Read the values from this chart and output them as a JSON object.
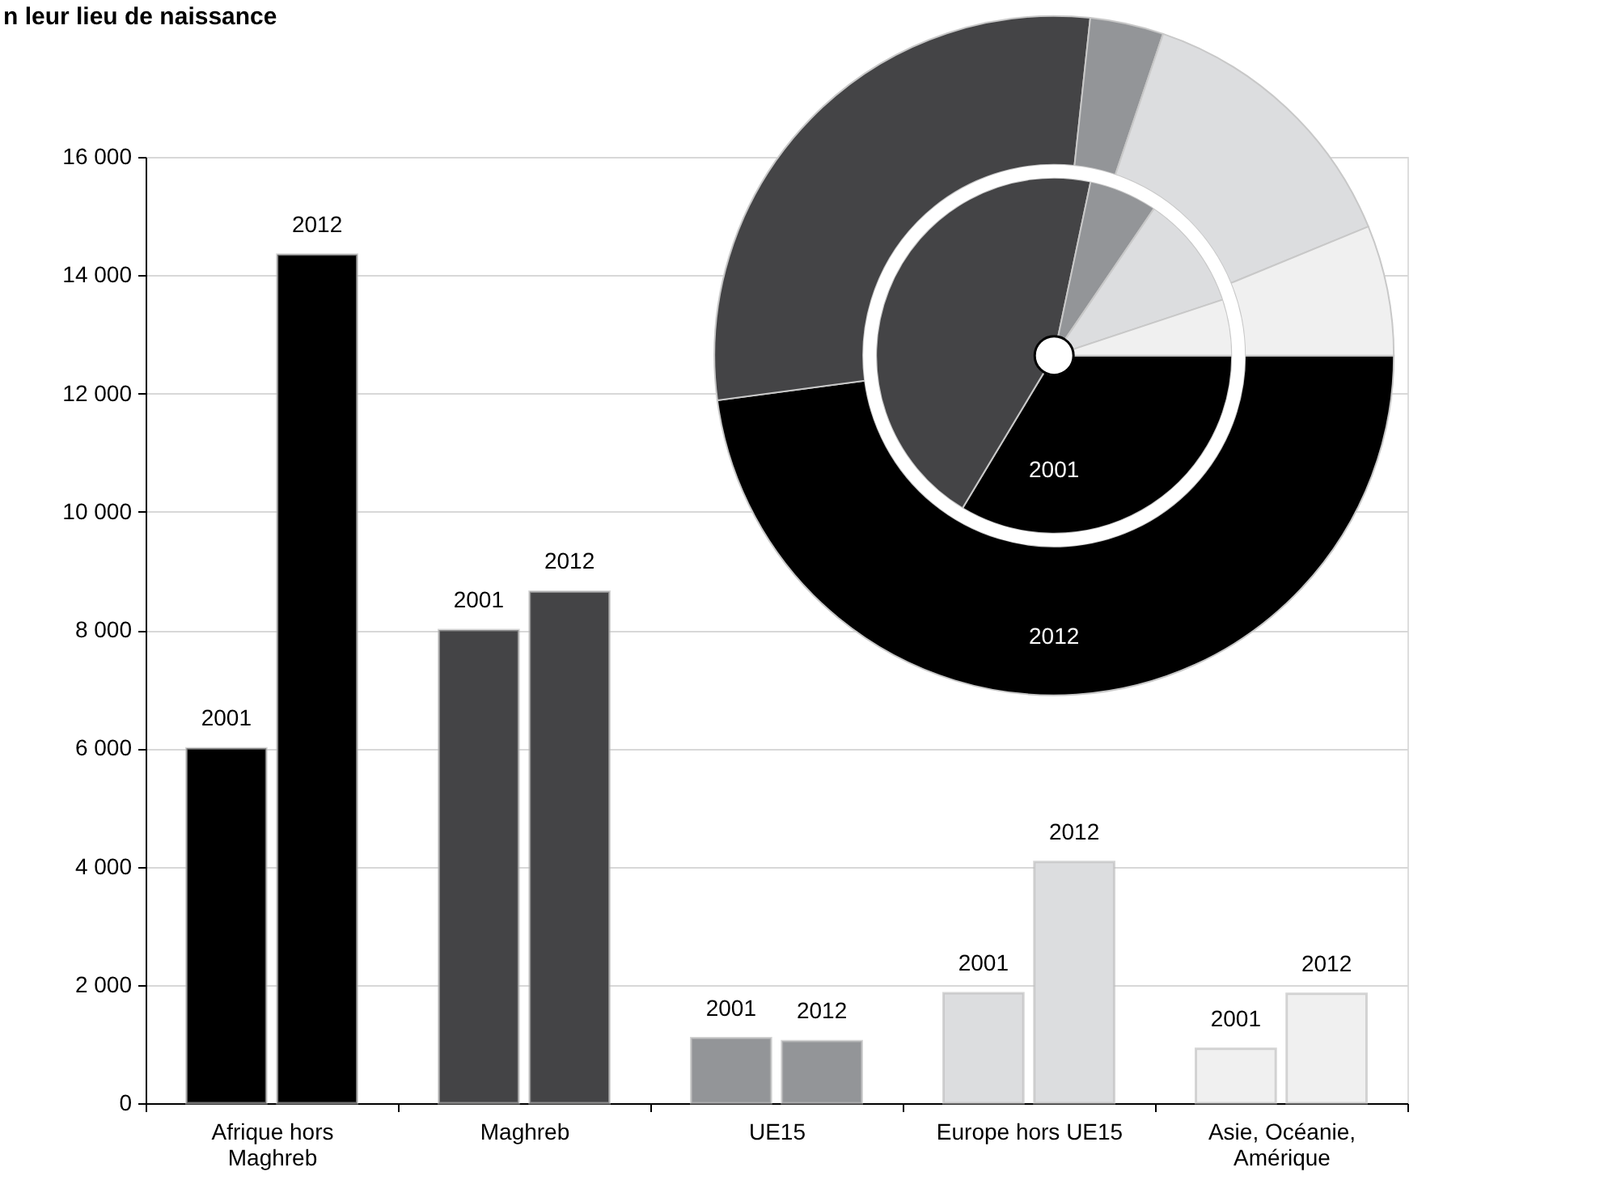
{
  "chart_data": [
    {
      "type": "bar",
      "title": "n leur lieu de naissance",
      "categories": [
        "Afrique hors Maghreb",
        "Maghreb",
        "UE15",
        "Europe hors UE15",
        "Asie, Océanie, Amérique"
      ],
      "series": [
        {
          "name": "2001",
          "values": [
            6000,
            8000,
            1100,
            1860,
            920
          ],
          "colors": [
            "#000000",
            "#444446",
            "#939598",
            "#dcdddf",
            "#f0f0f0"
          ]
        },
        {
          "name": "2012",
          "values": [
            14350,
            8650,
            1050,
            4080,
            1850
          ],
          "colors": [
            "#000000",
            "#444446",
            "#939598",
            "#dcdddf",
            "#f0f0f0"
          ]
        }
      ],
      "ylim": [
        0,
        16000
      ],
      "yticks": [
        {
          "value": 0,
          "label": "0"
        },
        {
          "value": 2000,
          "label": "2 000"
        },
        {
          "value": 4000,
          "label": "4 000"
        },
        {
          "value": 6000,
          "label": "6 000"
        },
        {
          "value": 8000,
          "label": "8 000"
        },
        {
          "value": 10000,
          "label": "10 000"
        },
        {
          "value": 12000,
          "label": "12 000"
        },
        {
          "value": 14000,
          "label": "14 000"
        },
        {
          "value": 16000,
          "label": "16 000"
        }
      ],
      "grid": "y",
      "legend": false
    },
    {
      "type": "donut",
      "categories": [
        null,
        null,
        null,
        null,
        null
      ],
      "series": [
        {
          "name": "2012",
          "values": [
            47.9,
            28.8,
            3.5,
            13.6,
            6.2
          ]
        },
        {
          "name": "2001",
          "values": [
            33.6,
            44.7,
            6.2,
            10.4,
            5.1
          ]
        }
      ],
      "colors": [
        "#000000",
        "#444446",
        "#939598",
        "#dcdddf",
        "#f0f0f0"
      ],
      "legend": false
    }
  ]
}
